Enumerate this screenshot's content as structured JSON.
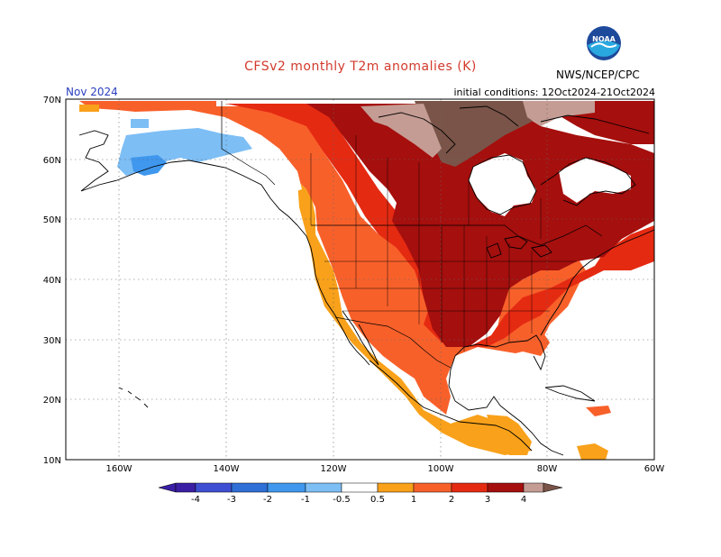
{
  "header": {
    "title": "CFSv2 monthly T2m anomalies (K)",
    "month": "Nov 2024",
    "initial_conditions": "initial conditions: 12Oct2024-21Oct2024",
    "agency": "NWS/NCEP/CPC",
    "logo_text": "NOAA"
  },
  "map": {
    "lat_ticks": [
      "70N",
      "60N",
      "50N",
      "40N",
      "30N",
      "20N",
      "10N"
    ],
    "lon_ticks": [
      "160W",
      "140W",
      "120W",
      "100W",
      "80W",
      "60W"
    ],
    "grid": "dotted"
  },
  "colorbar": {
    "labels": [
      "-4",
      "-3",
      "-2",
      "-1",
      "-0.5",
      "0.5",
      "1",
      "2",
      "3",
      "4"
    ],
    "colors": [
      "#3a1ea3",
      "#3f4fd3",
      "#2f6fd6",
      "#3f97ee",
      "#7dbef5",
      "#ffffff",
      "#f9a11a",
      "#f8602a",
      "#e52a12",
      "#a50f0d",
      "#c49c94",
      "#7a5448"
    ]
  },
  "regions": [
    {
      "name": "alaska-cold",
      "category": "-1 to -0.5"
    },
    {
      "name": "alaska-cold-core",
      "category": "-2 to -1"
    },
    {
      "name": "west-coast",
      "category": "0.5 to 1"
    },
    {
      "name": "western-canada-us",
      "category": "1 to 2"
    },
    {
      "name": "central-us-canada",
      "category": "2 to 3"
    },
    {
      "name": "hudson-arctic",
      "category": "3 to 4"
    },
    {
      "name": "arctic-peak",
      "category": "> 4"
    }
  ]
}
